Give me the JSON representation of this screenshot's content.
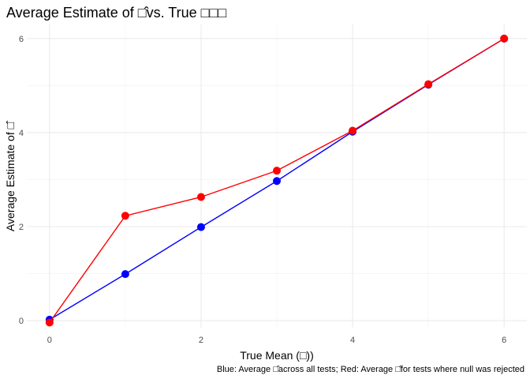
{
  "chart_data": {
    "type": "line",
    "title": "Average Estimate of □̂vs. True □□□",
    "xlabel": "True Mean (□))",
    "ylabel": "Average Estimate of □̂",
    "caption": "Blue: Average □̂across all tests; Red: Average □̂for tests where null was rejected",
    "x": [
      0,
      1,
      2,
      3,
      4,
      5,
      6
    ],
    "xlim": [
      -0.3,
      6.3
    ],
    "ylim": [
      -0.15,
      6.3
    ],
    "x_ticks": [
      0,
      2,
      4,
      6
    ],
    "y_ticks": [
      0,
      2,
      4,
      6
    ],
    "x_tick_labels": [
      "0",
      "2",
      "4",
      "6"
    ],
    "y_tick_labels": [
      "0",
      "2",
      "4",
      "6"
    ],
    "grid": true,
    "legend": "none",
    "series": [
      {
        "color": "#0000ff",
        "values": [
          0.02,
          0.99,
          1.99,
          2.97,
          4.02,
          5.02,
          6.0
        ]
      },
      {
        "color": "#ff0000",
        "values": [
          -0.04,
          2.23,
          2.63,
          3.19,
          4.04,
          5.03,
          6.0
        ]
      }
    ]
  }
}
